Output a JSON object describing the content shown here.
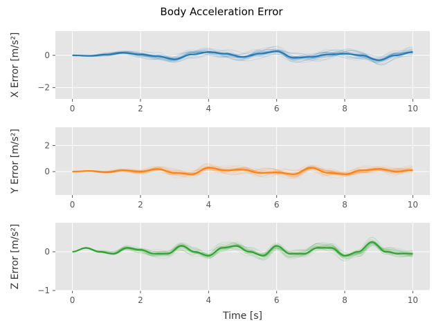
{
  "figure_title": "Body Acceleration Error",
  "chart_data": [
    {
      "type": "line",
      "title": "",
      "xlabel": "",
      "ylabel": "X Error",
      "ylabel_unit": "[m/s²]",
      "color": "#1f77b4",
      "xlim": [
        -0.5,
        10.5
      ],
      "ylim": [
        -2.7,
        1.5
      ],
      "xticks": [
        "0",
        "2",
        "4",
        "6",
        "8",
        "10"
      ],
      "yticks": [
        {
          "v": 0,
          "label": "0"
        },
        {
          "v": -2,
          "label": "−2"
        }
      ],
      "grid": true,
      "series": [
        {
          "x": [
            0,
            0.5,
            1,
            1.5,
            2,
            2.5,
            3,
            3.5,
            4,
            4.5,
            5,
            5.5,
            6,
            6.5,
            7,
            7.5,
            8,
            8.5,
            9,
            9.5,
            10
          ],
          "values": [
            0,
            -0.03,
            0.05,
            0.15,
            0.05,
            -0.05,
            -0.25,
            0.05,
            0.2,
            0.1,
            -0.1,
            0.1,
            0.25,
            -0.15,
            -0.1,
            0.05,
            0.1,
            0,
            -0.3,
            0.0,
            0.2
          ]
        }
      ]
    },
    {
      "type": "line",
      "title": "",
      "xlabel": "",
      "ylabel": "Y Error",
      "ylabel_unit": "[m/s²]",
      "color": "#ff7f0e",
      "xlim": [
        -0.5,
        10.5
      ],
      "ylim": [
        -1.8,
        3.4
      ],
      "xticks": [
        "0",
        "2",
        "4",
        "6",
        "8",
        "10"
      ],
      "yticks": [
        {
          "v": 2,
          "label": "2"
        },
        {
          "v": 0,
          "label": "0"
        }
      ],
      "grid": true,
      "series": [
        {
          "x": [
            0,
            0.5,
            1,
            1.5,
            2,
            2.5,
            3,
            3.5,
            4,
            4.5,
            5,
            5.5,
            6,
            6.5,
            7,
            7.5,
            8,
            8.5,
            9,
            9.5,
            10
          ],
          "values": [
            0,
            0.05,
            -0.05,
            0.1,
            0.0,
            0.2,
            -0.1,
            -0.2,
            0.3,
            0.1,
            0.15,
            -0.1,
            -0.05,
            -0.2,
            0.3,
            -0.1,
            -0.2,
            0.1,
            0.2,
            0.0,
            0.1
          ]
        }
      ]
    },
    {
      "type": "line",
      "title": "",
      "xlabel": "Time [s]",
      "ylabel": "Z Error",
      "ylabel_unit": "[m/s²]",
      "color": "#2ca02c",
      "xlim": [
        -0.5,
        10.5
      ],
      "ylim": [
        -1.0,
        0.75
      ],
      "xticks": [
        "0",
        "2",
        "4",
        "6",
        "8",
        "10"
      ],
      "yticks": [
        {
          "v": 0,
          "label": "0"
        },
        {
          "v": -1,
          "label": "−1"
        }
      ],
      "grid": true,
      "series": [
        {
          "x": [
            0,
            0.4,
            0.8,
            1.2,
            1.6,
            2.0,
            2.4,
            2.8,
            3.2,
            3.6,
            4.0,
            4.4,
            4.8,
            5.2,
            5.6,
            6.0,
            6.4,
            6.8,
            7.2,
            7.6,
            8.0,
            8.4,
            8.8,
            9.2,
            9.6,
            10
          ],
          "values": [
            0,
            0.1,
            0,
            -0.05,
            0.1,
            0.05,
            -0.05,
            -0.05,
            0.15,
            0,
            -0.1,
            0.1,
            0.15,
            0,
            -0.1,
            0.15,
            -0.05,
            -0.05,
            0.1,
            0.1,
            -0.1,
            0,
            0.25,
            0.0,
            -0.05,
            -0.05
          ]
        }
      ]
    }
  ]
}
